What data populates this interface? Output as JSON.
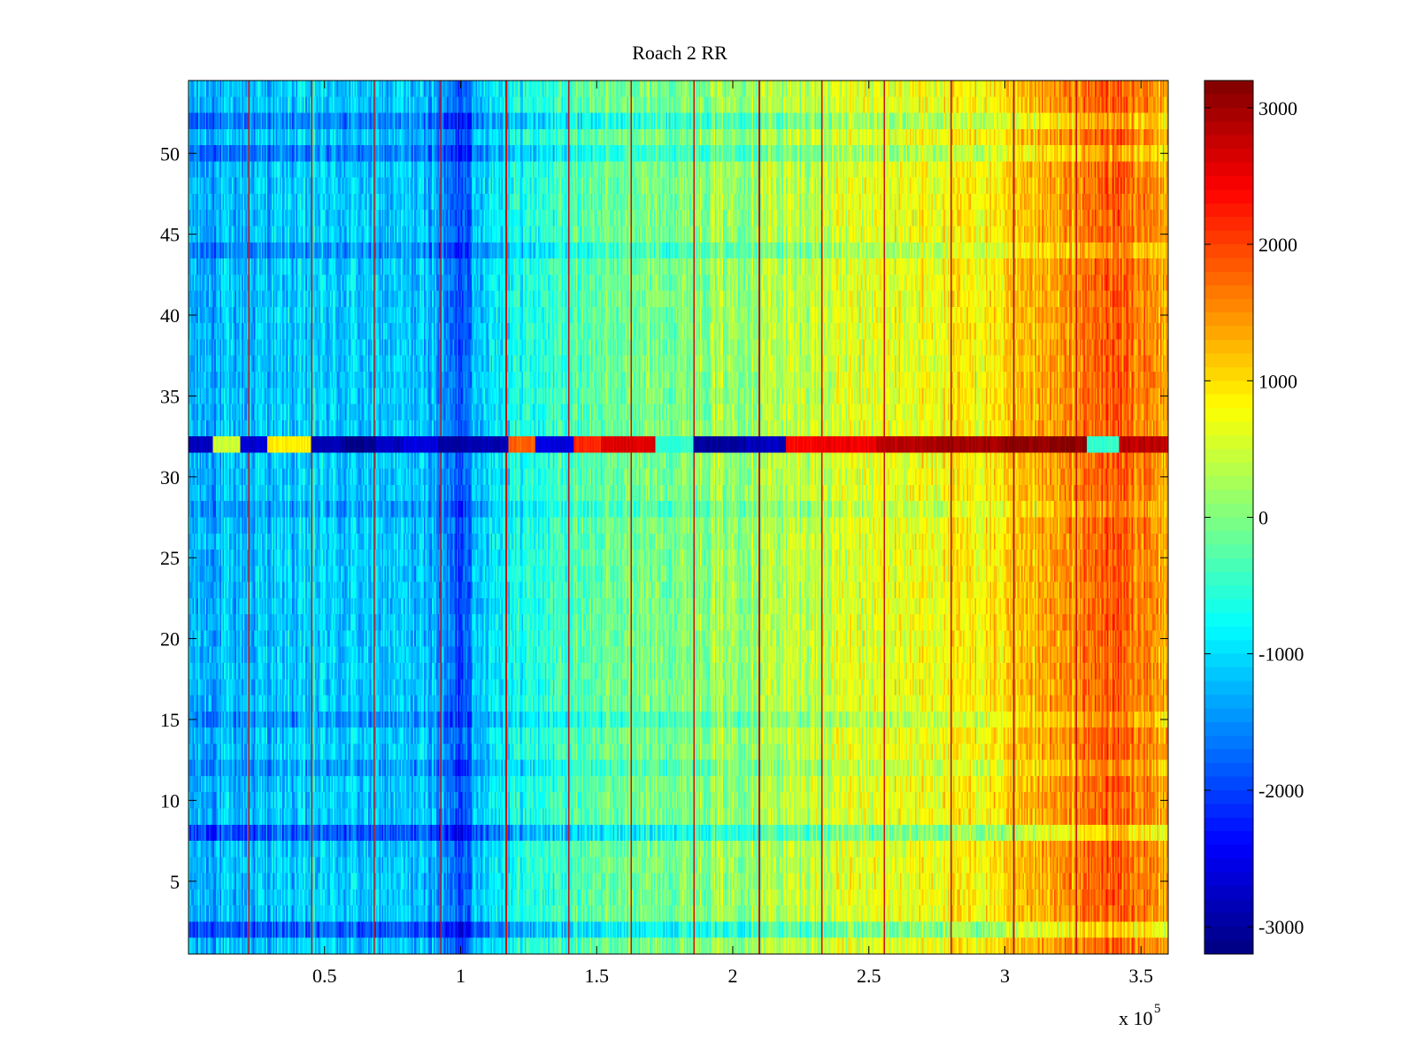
{
  "chart_data": {
    "type": "heatmap",
    "title": "Roach 2 RR",
    "xlabel": "",
    "ylabel": "",
    "x_exponent_label": "x 10",
    "x_exponent": "5",
    "xlim": [
      0,
      3.6
    ],
    "ylim": [
      0.5,
      54.5
    ],
    "x_ticks": [
      0.5,
      1,
      1.5,
      2,
      2.5,
      3,
      3.5
    ],
    "x_tick_labels": [
      "0.5",
      "1",
      "1.5",
      "2",
      "2.5",
      "3",
      "3.5"
    ],
    "y_ticks": [
      5,
      10,
      15,
      20,
      25,
      30,
      35,
      40,
      45,
      50
    ],
    "y_tick_labels": [
      "5",
      "10",
      "15",
      "20",
      "25",
      "30",
      "35",
      "40",
      "45",
      "50"
    ],
    "colormap": "jet",
    "clim": [
      -3200,
      3200
    ],
    "colorbar_ticks": [
      -3000,
      -2000,
      -1000,
      0,
      1000,
      2000,
      3000
    ],
    "colorbar_tick_labels": [
      "-3000",
      "-2000",
      "-1000",
      "0",
      "1000",
      "2000",
      "3000"
    ],
    "rows": 54,
    "columns_x_range": [
      0.01,
      3.6
    ],
    "column_trend": {
      "x": [
        0.0,
        0.5,
        0.9,
        1.0,
        1.1,
        1.5,
        2.0,
        2.5,
        3.0,
        3.25,
        3.4,
        3.6
      ],
      "value": [
        -1300,
        -1100,
        -1200,
        -1900,
        -900,
        -200,
        200,
        600,
        900,
        1500,
        1900,
        1300
      ]
    },
    "special_rows": {
      "row_32": {
        "segments": [
          {
            "x": 0.02,
            "value": -2800
          },
          {
            "x": 0.1,
            "value": 500
          },
          {
            "x": 0.2,
            "value": -2700
          },
          {
            "x": 0.3,
            "value": 900
          },
          {
            "x": 0.46,
            "value": -2900
          },
          {
            "x": 0.58,
            "value": -3100
          },
          {
            "x": 0.7,
            "value": -2800
          },
          {
            "x": 0.8,
            "value": -2600
          },
          {
            "x": 0.92,
            "value": -3000
          },
          {
            "x": 1.03,
            "value": -2900
          },
          {
            "x": 1.18,
            "value": 1800
          },
          {
            "x": 1.28,
            "value": -2600
          },
          {
            "x": 1.42,
            "value": 2200
          },
          {
            "x": 1.52,
            "value": 2600
          },
          {
            "x": 1.72,
            "value": -500
          },
          {
            "x": 1.86,
            "value": -3000
          },
          {
            "x": 2.05,
            "value": -2800
          },
          {
            "x": 2.2,
            "value": 2400
          },
          {
            "x": 2.3,
            "value": 2500
          },
          {
            "x": 2.53,
            "value": 2800
          },
          {
            "x": 2.62,
            "value": 2900
          },
          {
            "x": 2.76,
            "value": 3000
          },
          {
            "x": 2.86,
            "value": 3000
          },
          {
            "x": 2.98,
            "value": 3100
          },
          {
            "x": 3.06,
            "value": 3100
          },
          {
            "x": 3.18,
            "value": 3100
          },
          {
            "x": 3.3,
            "value": -500
          },
          {
            "x": 3.42,
            "value": 2800
          }
        ]
      },
      "dark_band_rows": [
        {
          "row": 2,
          "offset": -700
        },
        {
          "row": 8,
          "offset": -700
        },
        {
          "row": 50,
          "offset": -450
        },
        {
          "row": 52,
          "offset": -450
        },
        {
          "row": 44,
          "offset": -350
        },
        {
          "row": 28,
          "offset": -250
        },
        {
          "row": 15,
          "offset": -300
        },
        {
          "row": 12,
          "offset": -250
        }
      ]
    },
    "vertical_lines_x": [
      0.23,
      0.46,
      0.69,
      0.93,
      1.17,
      1.4,
      1.63,
      1.86,
      2.1,
      2.33,
      2.56,
      2.8,
      3.03,
      3.26
    ]
  }
}
